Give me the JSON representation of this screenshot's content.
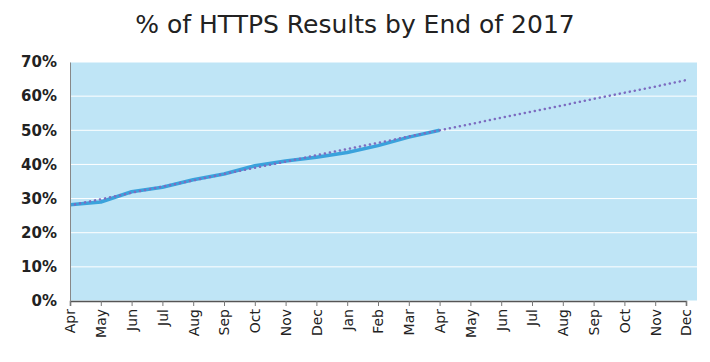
{
  "chart_data": {
    "type": "line",
    "title": "% of HTTPS Results by End of 2017",
    "categories": [
      "Apr",
      "May",
      "Jun",
      "Jul",
      "Aug",
      "Sep",
      "Oct",
      "Nov",
      "Dec",
      "Jan",
      "Feb",
      "Mar",
      "Apr",
      "May",
      "Jun",
      "Jul",
      "Aug",
      "Sep",
      "Oct",
      "Nov",
      "Dec"
    ],
    "series": [
      {
        "color": "#3aa2dc",
        "line_style": "solid",
        "values": [
          28.2,
          29.0,
          32.0,
          33.3,
          35.5,
          37.2,
          39.6,
          41.0,
          42.1,
          43.5,
          45.5,
          48.0,
          50.0,
          null,
          null,
          null,
          null,
          null,
          null,
          null,
          null
        ]
      },
      {
        "color": "#7d6cc0",
        "line_style": "dotted",
        "values": [
          28.0,
          29.8,
          31.7,
          33.5,
          35.3,
          37.2,
          39.0,
          40.8,
          42.7,
          44.5,
          46.3,
          48.2,
          50.0,
          51.8,
          53.7,
          55.5,
          57.3,
          59.2,
          61.0,
          62.8,
          64.7
        ]
      }
    ],
    "ylim": [
      0,
      70
    ],
    "yticks": [
      {
        "value": 0,
        "label": "0%"
      },
      {
        "value": 10,
        "label": "10%"
      },
      {
        "value": 20,
        "label": "20%"
      },
      {
        "value": 30,
        "label": "30%"
      },
      {
        "value": 40,
        "label": "40%"
      },
      {
        "value": 50,
        "label": "50%"
      },
      {
        "value": 60,
        "label": "60%"
      },
      {
        "value": 70,
        "label": "70%"
      }
    ],
    "grid": true
  }
}
